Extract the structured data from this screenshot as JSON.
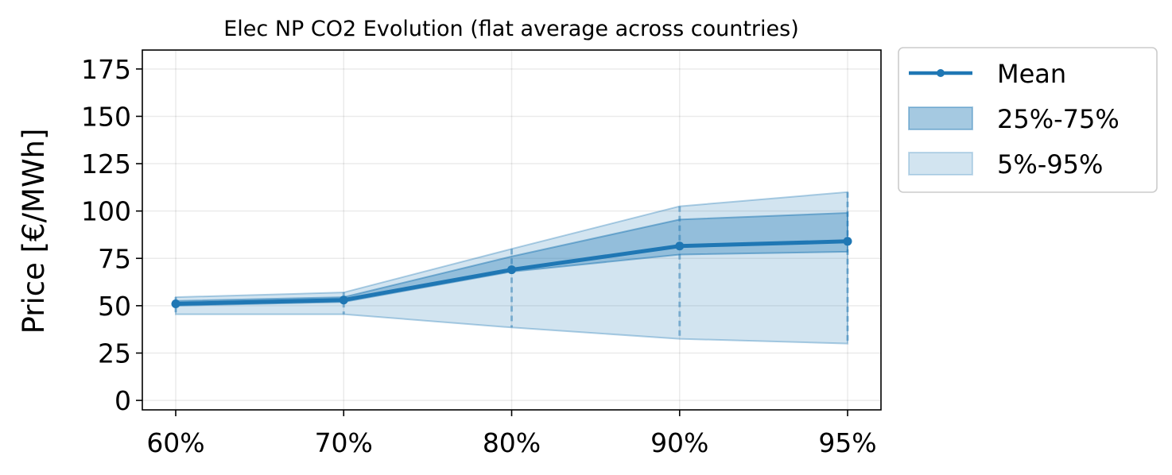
{
  "chart_data": {
    "type": "line",
    "title": "Elec NP CO2 Evolution (flat average across countries)",
    "xlabel": "",
    "ylabel": "Price [€/MWh]",
    "categories": [
      "60%",
      "70%",
      "80%",
      "90%",
      "95%"
    ],
    "ylim": [
      -5,
      185
    ],
    "yticks": [
      0,
      25,
      50,
      75,
      100,
      125,
      150,
      175
    ],
    "grid": true,
    "legend_position": "outside-top-right",
    "series": [
      {
        "name": "Mean",
        "kind": "line",
        "color": "#1f77b4",
        "values": [
          51,
          53,
          69,
          81.5,
          84
        ]
      },
      {
        "name": "25%-75%",
        "kind": "band",
        "color": "#1f77b4",
        "opacity": 0.35,
        "lower": [
          50,
          52,
          68,
          77,
          78.5
        ],
        "upper": [
          52.5,
          54.5,
          76,
          95.5,
          99
        ]
      },
      {
        "name": "5%-95%",
        "kind": "band",
        "color": "#1f77b4",
        "opacity": 0.2,
        "lower": [
          45.5,
          45.5,
          38.5,
          32.5,
          30
        ],
        "upper": [
          54.5,
          57,
          80,
          102.5,
          110
        ]
      }
    ]
  }
}
